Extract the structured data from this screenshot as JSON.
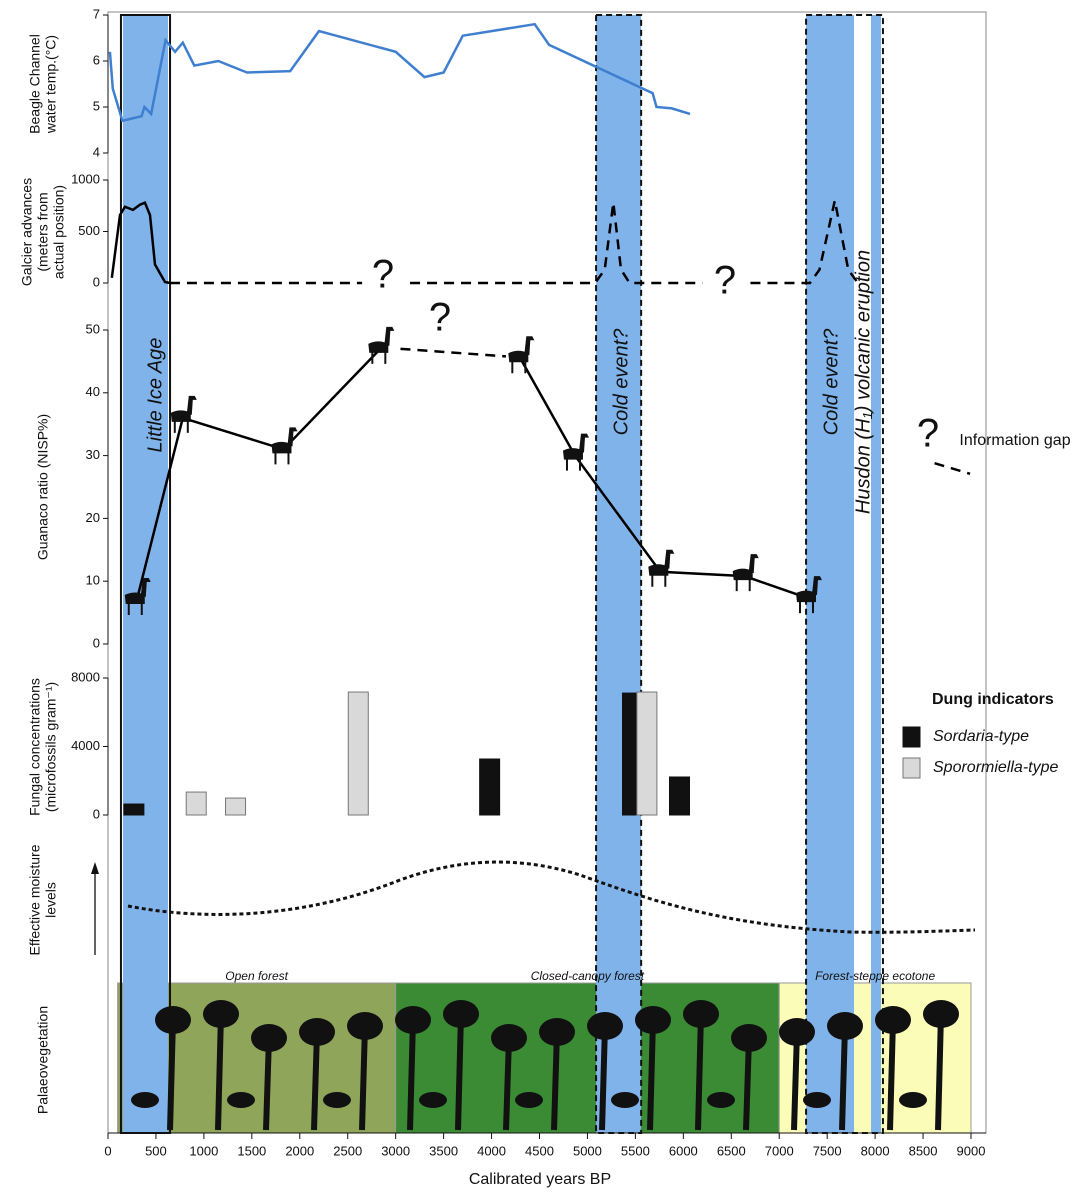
{
  "chart_data": [
    {
      "type": "line",
      "ylabel": [
        "Beagle Channel",
        "water temp.(°C)"
      ],
      "ylim": [
        4,
        7
      ],
      "yticks": [
        4,
        5,
        6,
        7
      ],
      "series": [
        {
          "color": "#3f7fd0",
          "x": [
            20,
            50,
            150,
            350,
            380,
            450,
            600,
            700,
            780,
            900,
            1150,
            1450,
            1900,
            2200,
            3000,
            3300,
            3500,
            3700,
            4450,
            4600,
            5680,
            5720,
            5880,
            6070
          ],
          "values": [
            6.2,
            5.4,
            4.7,
            4.8,
            5.0,
            4.85,
            6.45,
            6.2,
            6.4,
            5.9,
            6.0,
            5.75,
            5.78,
            6.65,
            6.2,
            5.65,
            5.75,
            6.55,
            6.8,
            6.35,
            5.3,
            5.0,
            4.97,
            4.85
          ]
        }
      ]
    },
    {
      "type": "line",
      "ylabel": [
        "Galcier advances",
        "(meters from",
        "actual position)"
      ],
      "ylim": [
        0,
        1000
      ],
      "yticks": [
        0,
        500,
        1000
      ],
      "series": [
        {
          "color": "#000000",
          "x": [
            40,
            125,
            177,
            260,
            333,
            385,
            438,
            490,
            594,
            646
          ],
          "values": [
            50,
            660,
            740,
            710,
            760,
            780,
            660,
            180,
            10,
            0
          ]
        },
        {
          "color": "#000000",
          "dashed": true,
          "x": [
            646,
            2650,
            2900,
            3150,
            5080,
            5180,
            5270,
            5350,
            5440,
            6200,
            6450,
            6700,
            7320,
            7420,
            7580,
            7720,
            7820
          ],
          "values": [
            0,
            0,
            null,
            0,
            0,
            130,
            780,
            130,
            0,
            0,
            null,
            0,
            0,
            130,
            800,
            130,
            0
          ]
        }
      ],
      "annotations": [
        "?",
        "?"
      ]
    },
    {
      "type": "line",
      "ylabel": [
        "Guanaco ratio (NISP%)"
      ],
      "ylim": [
        0,
        50
      ],
      "yticks": [
        0,
        10,
        20,
        30,
        40,
        50
      ],
      "series": [
        {
          "color": "#000000",
          "markers": "llama",
          "x": [
            300,
            780,
            1830,
            2840
          ],
          "values": [
            7,
            36,
            31,
            47
          ]
        },
        {
          "color": "#000000",
          "dashed": true,
          "x": [
            3050,
            4150
          ],
          "values": [
            47,
            45.8
          ]
        },
        {
          "color": "#000000",
          "markers": "llama",
          "x": [
            4300,
            4870,
            5760,
            6640,
            7300
          ],
          "values": [
            45.5,
            30,
            11.5,
            10.8,
            7.3
          ]
        },
        {
          "color": "#000000",
          "dashed": true,
          "x": [
            8620,
            8990
          ],
          "values": [
            28.8,
            27.1
          ]
        }
      ],
      "annotations": [
        "?",
        "?",
        "Information gap"
      ]
    },
    {
      "type": "bar",
      "ylabel": [
        "Fungal concentrations",
        "(microfossils gram⁻¹)"
      ],
      "ylim": [
        0,
        8000
      ],
      "yticks": [
        0,
        4000,
        8000
      ],
      "legend_title": "Dung indicators",
      "series": [
        {
          "name": "Sordaria-type",
          "color": "#111111",
          "x": [
            270,
            3980,
            5470,
            5960
          ],
          "values": [
            640,
            3270,
            7120,
            2220
          ]
        },
        {
          "name": "Sporormiella-type",
          "color": "#d9d9d9",
          "x": [
            920,
            1330,
            2610,
            5620
          ],
          "values": [
            1340,
            990,
            7180,
            7180
          ]
        }
      ]
    },
    {
      "type": "curve",
      "ylabel": [
        "Effective moisture",
        "levels"
      ]
    },
    {
      "type": "zones",
      "ylabel": [
        "Palaeovegetation"
      ],
      "xlabel": "Calibrated years BP",
      "xlim": [
        0,
        9000
      ],
      "xticks": [
        0,
        500,
        1000,
        1500,
        2000,
        2500,
        3000,
        3500,
        4000,
        4500,
        5000,
        5500,
        6000,
        6500,
        7000,
        7500,
        8000,
        8500,
        9000
      ],
      "zones": [
        {
          "range": [
            100,
            3000
          ],
          "label": "Open forest",
          "color": "#8fa55a"
        },
        {
          "range": [
            3000,
            7000
          ],
          "label": "Closed-canopy forest",
          "color": "#3b8a34"
        },
        {
          "range": [
            7000,
            9000
          ],
          "label": "Forest-steppe ecotone",
          "color": "#fafcb8"
        }
      ]
    }
  ],
  "periods": [
    {
      "range": [
        156,
        626
      ],
      "label": "Little Ice Age",
      "color": "#80b3ea"
    },
    {
      "range": [
        5090,
        5560
      ],
      "label": "Cold event?",
      "color": "#80b3ea"
    },
    {
      "range": [
        7280,
        7780
      ],
      "label": "Cold event?",
      "color": "#80b3ea"
    },
    {
      "range": [
        7957,
        8061
      ],
      "label": "Husdon (H₁) volcanic eruption",
      "color": "#80b3ea"
    }
  ]
}
